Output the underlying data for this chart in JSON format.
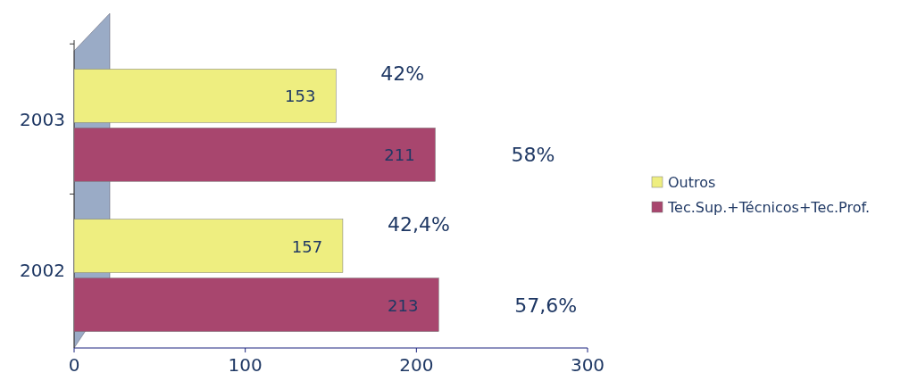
{
  "chart_data": {
    "type": "bar",
    "orientation": "horizontal",
    "categories": [
      "2003",
      "2002"
    ],
    "series": [
      {
        "name": "Outros",
        "color": "#eeee80",
        "values": [
          153,
          157
        ]
      },
      {
        "name": "Tec.Sup.+Técnicos+Tec.Prof.",
        "color": "#a8466e",
        "values": [
          211,
          213
        ]
      }
    ],
    "xlim": [
      0,
      300
    ],
    "xticks": [
      0,
      100,
      200,
      300
    ],
    "data_labels": true,
    "legend": "right",
    "grid": false,
    "annotations": [
      "42%",
      "58%",
      "42,4%",
      "57,6%"
    ]
  }
}
